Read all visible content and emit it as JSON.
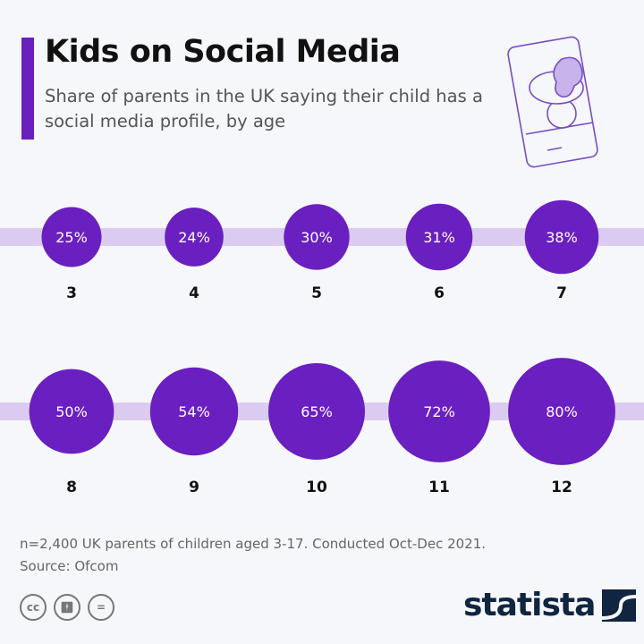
{
  "header": {
    "title": "Kids on Social Media",
    "subtitle": "Share of parents in the UK saying their child has a social media profile, by age"
  },
  "footer": {
    "note": "n=2,400 UK parents of children aged 3-17. Conducted Oct-Dec 2021.",
    "source": "Source: Ofcom",
    "logo": "statista",
    "license_icons": [
      "cc-icon",
      "attribution-icon",
      "no-derivatives-icon"
    ]
  },
  "colors": {
    "accent": "#6a1fc0",
    "band": "#dccbf0",
    "text": "#111111"
  },
  "chart_data": {
    "type": "bubble",
    "title": "Kids on Social Media",
    "xlabel": "",
    "ylabel": "",
    "categories": [
      "3",
      "4",
      "5",
      "6",
      "7",
      "8",
      "9",
      "10",
      "11",
      "12"
    ],
    "values": [
      25,
      24,
      30,
      31,
      38,
      50,
      54,
      65,
      72,
      80
    ],
    "value_labels": [
      "25%",
      "24%",
      "30%",
      "31%",
      "38%",
      "50%",
      "54%",
      "65%",
      "72%",
      "80%"
    ],
    "unit": "%"
  }
}
